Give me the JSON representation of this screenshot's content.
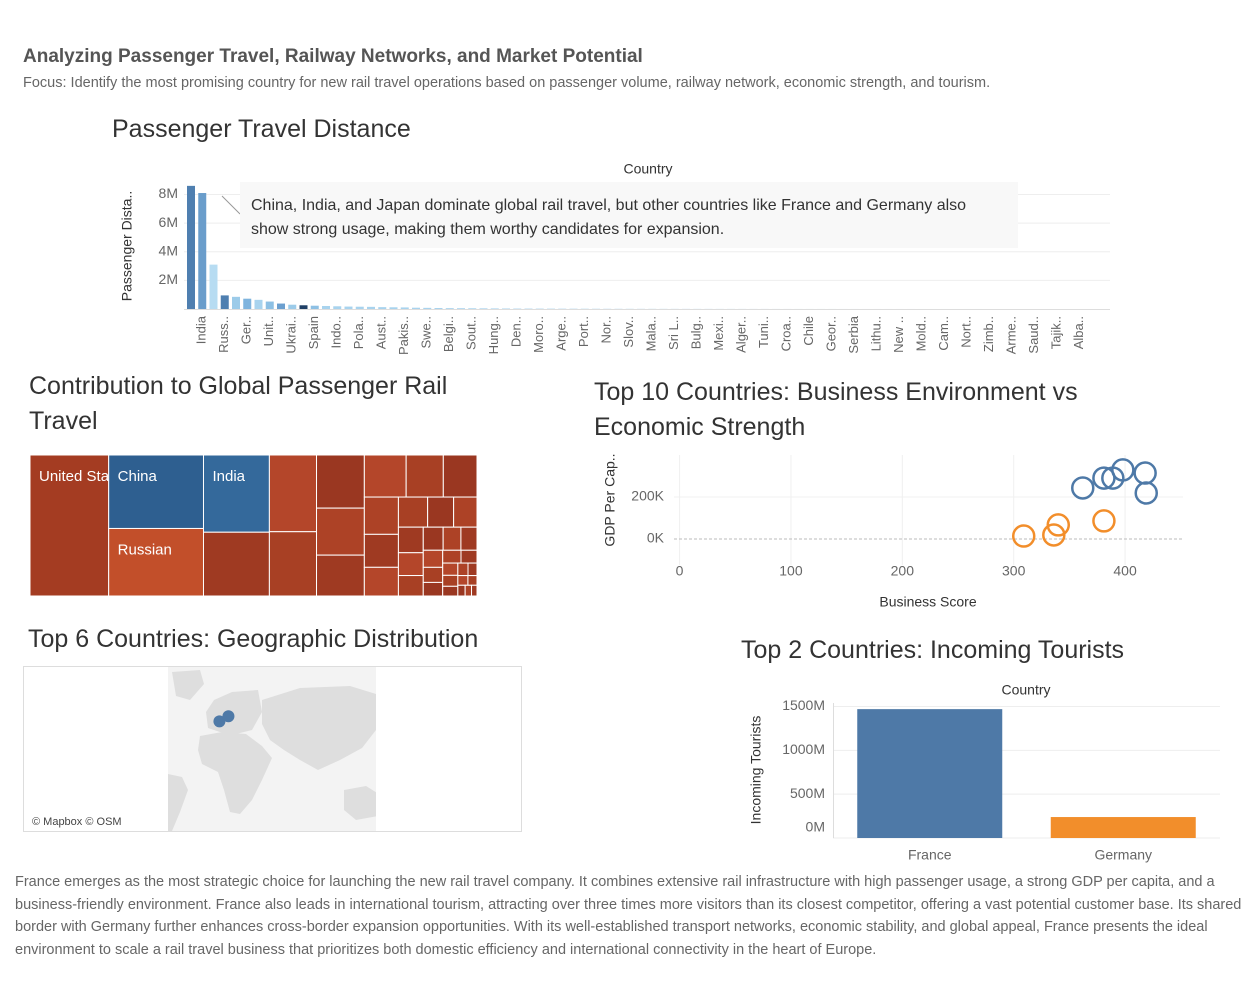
{
  "header": {
    "title": "Analyzing Passenger Travel, Railway Networks, and Market Potential",
    "subtitle": "Focus: Identify the most promising country for new rail travel operations based on passenger volume, railway network, economic strength, and tourism."
  },
  "chart_data": [
    {
      "type": "bar",
      "title": "Passenger Travel Distance",
      "column_header": "Country",
      "y_label": "Passenger Dista..",
      "annotation": "China, India, and Japan dominate global rail travel, but other countries like France and Germany also show strong usage, making them worthy candidates for expansion.",
      "categories": [
        null,
        "India",
        null,
        "Russ..",
        null,
        "Ger..",
        null,
        "Unit..",
        null,
        "Ukrai..",
        null,
        "Spain",
        null,
        "Indo..",
        null,
        "Pola..",
        null,
        "Aust..",
        null,
        "Pakis..",
        null,
        "Swe..",
        null,
        "Belgi..",
        null,
        "Sout..",
        null,
        "Hung..",
        null,
        "Den..",
        null,
        "Moro..",
        null,
        "Arge..",
        null,
        "Port..",
        null,
        "Nor..",
        null,
        "Slov..",
        null,
        "Mala..",
        null,
        "Sri L..",
        null,
        "Bulg..",
        null,
        "Mexi..",
        null,
        "Alger..",
        null,
        "Tuni..",
        null,
        "Croa..",
        null,
        "Chile",
        null,
        "Geor..",
        null,
        "Serbia",
        null,
        "Lithu..",
        null,
        "New ..",
        null,
        "Mold..",
        null,
        "Cam..",
        null,
        "Nort..",
        null,
        "Zimb..",
        null,
        "Arme..",
        null,
        "Saud..",
        null,
        "Tajik..",
        null,
        "Alba.."
      ],
      "values": [
        8600000,
        8100000,
        3100000,
        950000,
        850000,
        720000,
        640000,
        520000,
        380000,
        300000,
        260000,
        230000,
        210000,
        190000,
        170000,
        160000,
        150000,
        130000,
        120000,
        110000,
        90000,
        80000,
        70000,
        60000,
        55000,
        50000,
        45000,
        40000,
        35000,
        30000,
        28000,
        26000,
        24000,
        22000,
        20000,
        18000,
        16000,
        14000,
        13000,
        12000,
        11000,
        10000,
        9000,
        8000,
        7500,
        7000,
        6500,
        6000,
        5500,
        5000,
        4500,
        4000,
        3600,
        3200,
        2800,
        2500,
        2200,
        2000,
        1800,
        1600,
        1400,
        1200,
        1000,
        900,
        800,
        700,
        600,
        500,
        450,
        400,
        350,
        300,
        250,
        200,
        150,
        120,
        100,
        80,
        60,
        40
      ],
      "colors": [
        "#4f7fb0",
        "#6a9dcb",
        "#b7dcf2",
        "#4e7fb0",
        "#9ccbe9",
        "#7fb4de",
        "#a8d3ee",
        "#8dc0e4",
        "#6b9fcf",
        "#9ccbe9",
        "#1f3f66",
        "#8dc0e4",
        "#a8d3ee",
        "#a8d3ee",
        "#a8d3ee",
        "#a8d3ee",
        "#a8d3ee",
        "#a8d3ee",
        "#a8d3ee",
        "#a8d3ee",
        "#a8d3ee",
        "#a8d3ee",
        "#a8d3ee",
        "#a8d3ee",
        "#a8d3ee",
        "#a8d3ee",
        "#a8d3ee",
        "#a8d3ee",
        "#a8d3ee",
        "#a8d3ee",
        "#a8d3ee",
        "#a8d3ee",
        "#a8d3ee",
        "#a8d3ee",
        "#a8d3ee",
        "#a8d3ee",
        "#a8d3ee",
        "#a8d3ee",
        "#a8d3ee",
        "#a8d3ee",
        "#a8d3ee",
        "#a8d3ee",
        "#a8d3ee",
        "#a8d3ee",
        "#a8d3ee",
        "#a8d3ee",
        "#a8d3ee",
        "#a8d3ee",
        "#a8d3ee",
        "#a8d3ee",
        "#a8d3ee",
        "#a8d3ee",
        "#a8d3ee",
        "#a8d3ee",
        "#a8d3ee",
        "#a8d3ee",
        "#a8d3ee",
        "#a8d3ee",
        "#a8d3ee",
        "#a8d3ee",
        "#a8d3ee",
        "#a8d3ee",
        "#a8d3ee",
        "#a8d3ee",
        "#a8d3ee",
        "#a8d3ee",
        "#a8d3ee",
        "#a8d3ee",
        "#a8d3ee",
        "#a8d3ee",
        "#a8d3ee",
        "#a8d3ee",
        "#a8d3ee",
        "#a8d3ee",
        "#a8d3ee",
        "#a8d3ee",
        "#a8d3ee",
        "#a8d3ee",
        "#a8d3ee",
        "#a8d3ee"
      ],
      "ylim": [
        0,
        8800000
      ],
      "yticks": [
        {
          "value": 2000000,
          "label": "2M"
        },
        {
          "value": 4000000,
          "label": "4M"
        },
        {
          "value": 6000000,
          "label": "6M"
        },
        {
          "value": 8000000,
          "label": "8M"
        }
      ],
      "grid": true
    },
    {
      "type": "treemap",
      "title": "Contribution to Global Passenger Rail Travel",
      "labels": [
        "United States",
        "China",
        "Russian",
        "India",
        null,
        null,
        null,
        null,
        null,
        null,
        null,
        null,
        null,
        null,
        null,
        null,
        null,
        null,
        null,
        null,
        null,
        null,
        null,
        null,
        null,
        null,
        null,
        null,
        null,
        null,
        null,
        null,
        null,
        null,
        null,
        null,
        null,
        null,
        null,
        null
      ],
      "values": [
        11352,
        7128,
        6552,
        5208,
        4300,
        3700,
        3100,
        2600,
        2300,
        2000,
        1800,
        1600,
        1450,
        1300,
        1150,
        1000,
        900,
        800,
        720,
        650,
        580,
        520,
        470,
        420,
        380,
        340,
        300,
        270,
        240,
        210,
        190,
        170,
        150,
        130,
        115,
        100,
        90,
        80,
        70,
        60
      ],
      "colors": [
        "#a43c22",
        "#2e5f90",
        "#c24f2a",
        "#34699b",
        "#9f3a22",
        "#b4462a",
        "#a84024",
        "#9a3721",
        "#ad4226",
        "#9f3a22",
        "#b4462a",
        "#a84024",
        "#9a3721",
        "#ad4226",
        "#9f3a22",
        "#b4462a",
        "#a84024",
        "#9a3721",
        "#ad4226",
        "#9f3a22",
        "#b4462a",
        "#a84024",
        "#9a3721",
        "#ad4226",
        "#9f3a22",
        "#b4462a",
        "#a84024",
        "#9a3721",
        "#ad4226",
        "#9f3a22",
        "#b4462a",
        "#a84024",
        "#9a3721",
        "#ad4226",
        "#9f3a22",
        "#b4462a",
        "#a84024",
        "#9a3721",
        "#ad4226",
        "#9f3a22"
      ]
    },
    {
      "type": "scatter",
      "title": "Top 10 Countries: Business Environment vs Economic Strength",
      "x_label": "Business Score",
      "y_label": "GDP Per Cap..",
      "x": [
        362,
        381,
        389,
        398,
        418,
        419,
        309,
        336,
        340,
        381
      ],
      "values": [
        243000,
        290000,
        290000,
        329000,
        314000,
        219000,
        14000,
        19000,
        67000,
        86000
      ],
      "colors": [
        "#4e79a7",
        "#4e79a7",
        "#4e79a7",
        "#4e79a7",
        "#4e79a7",
        "#4e79a7",
        "#f28e2b",
        "#f28e2b",
        "#f28e2b",
        "#f28e2b"
      ],
      "xlim": [
        -5,
        452
      ],
      "xticks": [
        0,
        100,
        200,
        300,
        400
      ],
      "ylim": [
        -124000,
        400000
      ],
      "yticks": [
        {
          "value": 0,
          "label": "0K"
        },
        {
          "value": 200000,
          "label": "200K"
        }
      ],
      "grid": true
    },
    {
      "type": "map",
      "title": "Top 6 Countries: Geographic Distribution",
      "attribution": "© Mapbox © OSM",
      "points": [
        {
          "lon": 2.2,
          "lat": 46.6
        },
        {
          "lon": 10.4,
          "lat": 51.1
        }
      ],
      "color": "#4e79a7"
    },
    {
      "type": "bar",
      "title": "Top 2 Countries: Incoming Tourists",
      "column_header": "Country",
      "y_label": "Incoming Tourists",
      "categories": [
        "France",
        "Germany"
      ],
      "values": [
        1470000000,
        239000000
      ],
      "colors": [
        "#4e79a7",
        "#f28e2b"
      ],
      "ylim": [
        0,
        1540000000
      ],
      "yticks": [
        {
          "value": 0,
          "label": "0M"
        },
        {
          "value": 500000000,
          "label": "500M"
        },
        {
          "value": 1000000000,
          "label": "1000M"
        },
        {
          "value": 1500000000,
          "label": "1500M"
        }
      ],
      "grid": true
    }
  ],
  "conclusion": "France emerges as the most strategic choice for launching the new rail travel company. It combines extensive rail infrastructure with high passenger usage, a strong GDP per capita, and a business-friendly environment. France also leads in international tourism, attracting over three times more visitors than its closest competitor, offering a vast potential customer base. Its shared border with Germany further enhances cross-border expansion opportunities. With its well-established transport networks, economic stability, and global appeal, France presents the ideal environment to scale a rail travel business that prioritizes both domestic efficiency and international connectivity in the heart of Europe."
}
